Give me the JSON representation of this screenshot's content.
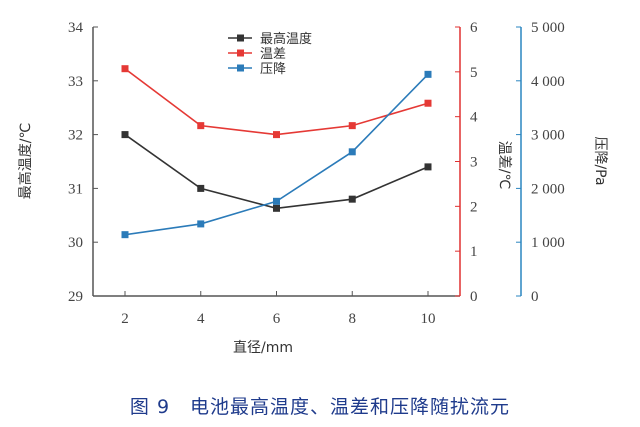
{
  "chart_data": {
    "type": "line",
    "x": [
      2,
      4,
      6,
      8,
      10
    ],
    "xlabel": "直径/mm",
    "x_ticks": [
      "2",
      "4",
      "6",
      "8",
      "10"
    ],
    "axes": {
      "left": {
        "label": "最高温度/℃",
        "range": [
          29,
          34
        ],
        "ticks": [
          "29",
          "30",
          "31",
          "32",
          "33",
          "34"
        ],
        "color": "#555555"
      },
      "right1": {
        "label": "温差/℃",
        "range": [
          0,
          6
        ],
        "ticks": [
          "0",
          "1",
          "2",
          "3",
          "4",
          "5",
          "6"
        ],
        "color": "#e03030"
      },
      "right2": {
        "label": "压降/Pa",
        "range": [
          0,
          5000
        ],
        "ticks": [
          "0",
          "1 000",
          "2 000",
          "3 000",
          "4 000",
          "5 000"
        ],
        "color": "#2a85c0"
      }
    },
    "series": [
      {
        "name": "最高温度",
        "axis": "left",
        "color": "#333333",
        "values": [
          32.0,
          31.0,
          30.63,
          30.8,
          31.4
        ]
      },
      {
        "name": "温差",
        "axis": "right1",
        "color": "#e53935",
        "values": [
          5.07,
          3.8,
          3.6,
          3.8,
          4.3
        ]
      },
      {
        "name": "压降",
        "axis": "right2",
        "color": "#2b7bb9",
        "values": [
          1140,
          1340,
          1760,
          2680,
          4120
        ]
      }
    ],
    "legend_position": "top-center",
    "grid": false
  },
  "caption": "图 9　电池最高温度、温差和压降随扰流元"
}
